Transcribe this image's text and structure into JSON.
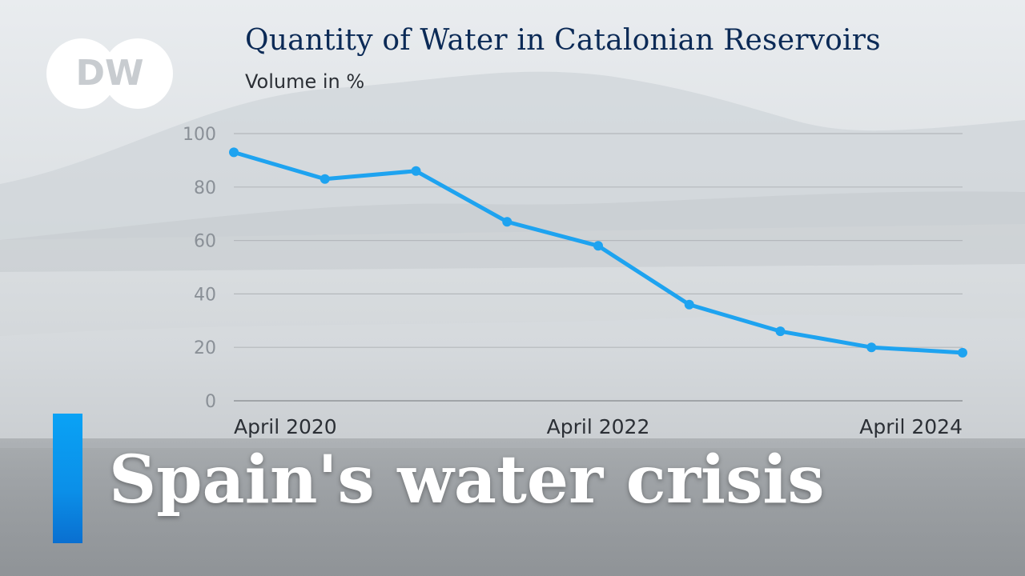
{
  "logo": {
    "text": "DW"
  },
  "title": "Quantity of Water in Catalonian Reservoirs",
  "subtitle": "Volume in %",
  "headline": "Spain's water crisis",
  "colors": {
    "line": "#1ea3f0",
    "title": "#0b2a56",
    "accent": "#0a95ee",
    "grid": "#b4b8bc"
  },
  "chart_data": {
    "type": "line",
    "title": "Quantity of Water in Catalonian Reservoirs",
    "subtitle": "Volume in %",
    "xlabel": "",
    "ylabel": "",
    "ylim": [
      0,
      100
    ],
    "yticks": [
      0,
      20,
      40,
      60,
      80,
      100
    ],
    "grid": true,
    "x_tick_labels": [
      "April 2020",
      "April 2022",
      "April 2024"
    ],
    "x": [
      "2020-04",
      "2020-10",
      "2021-04",
      "2021-10",
      "2022-04",
      "2022-10",
      "2023-04",
      "2023-10",
      "2024-04"
    ],
    "series": [
      {
        "values": [
          93,
          83,
          86,
          67,
          58,
          36,
          26,
          20,
          18
        ]
      }
    ]
  }
}
